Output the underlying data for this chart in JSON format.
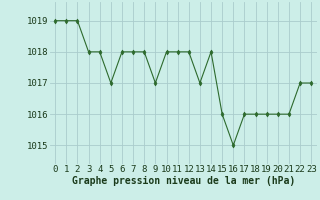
{
  "x": [
    0,
    1,
    2,
    3,
    4,
    5,
    6,
    7,
    8,
    9,
    10,
    11,
    12,
    13,
    14,
    15,
    16,
    17,
    18,
    19,
    20,
    21,
    22,
    23
  ],
  "y": [
    1019,
    1019,
    1019,
    1018,
    1018,
    1017,
    1018,
    1018,
    1018,
    1017,
    1018,
    1018,
    1018,
    1017,
    1018,
    1016,
    1015,
    1016,
    1016,
    1016,
    1016,
    1016,
    1017,
    1017
  ],
  "line_color": "#2d6a2d",
  "marker": "d",
  "marker_color": "#2d6a2d",
  "marker_size": 2.5,
  "background_color": "#cceee8",
  "grid_color": "#aacccc",
  "xlabel": "Graphe pression niveau de la mer (hPa)",
  "xlabel_color": "#1a3a1a",
  "xlabel_fontsize": 7.0,
  "tick_label_color": "#1a3a1a",
  "tick_fontsize": 6.5,
  "ylim": [
    1014.4,
    1019.6
  ],
  "yticks": [
    1015,
    1016,
    1017,
    1018,
    1019
  ],
  "xlim": [
    -0.5,
    23.5
  ],
  "xticks": [
    0,
    1,
    2,
    3,
    4,
    5,
    6,
    7,
    8,
    9,
    10,
    11,
    12,
    13,
    14,
    15,
    16,
    17,
    18,
    19,
    20,
    21,
    22,
    23
  ]
}
